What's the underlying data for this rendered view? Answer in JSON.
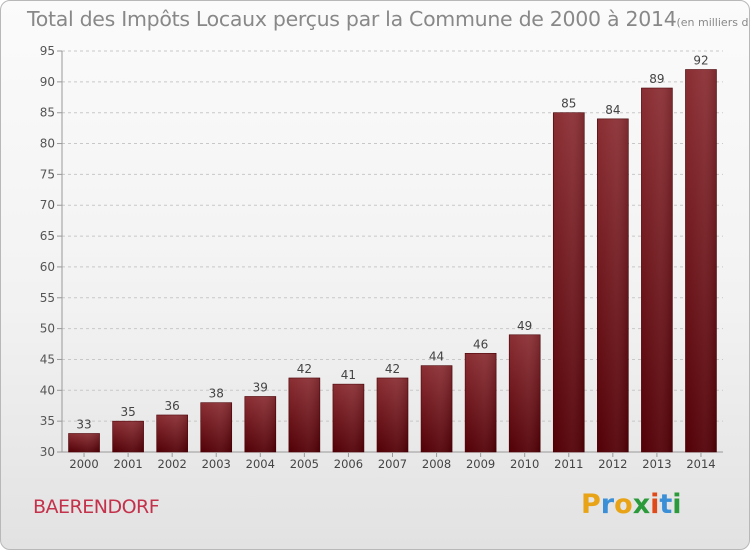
{
  "chart_data": {
    "type": "bar",
    "title": "Total des Impôts Locaux perçus par la Commune de 2000 à 2014",
    "unit": "(en milliers d'€)",
    "categories": [
      "2000",
      "2001",
      "2002",
      "2003",
      "2004",
      "2005",
      "2006",
      "2007",
      "2008",
      "2009",
      "2010",
      "2011",
      "2012",
      "2013",
      "2014"
    ],
    "values": [
      33,
      35,
      36,
      38,
      39,
      42,
      41,
      42,
      44,
      46,
      49,
      85,
      84,
      89,
      92
    ],
    "ylim": [
      30,
      95
    ],
    "yticks": [
      30,
      35,
      40,
      45,
      50,
      55,
      60,
      65,
      70,
      75,
      80,
      85,
      90,
      95
    ],
    "xlabel": "",
    "ylabel": "",
    "grid": "horizontal dashed",
    "bar_color": "#7a1a1f"
  },
  "commune_name": "BAERENDORF",
  "logo": {
    "letters": [
      "P",
      "r",
      "o",
      "x",
      "i",
      "t",
      "i"
    ],
    "colors": [
      "#e8a316",
      "#3b8fd6",
      "#e8a316",
      "#2a9a3a",
      "#e04a1a",
      "#3b8fd6",
      "#2a9a3a"
    ]
  }
}
